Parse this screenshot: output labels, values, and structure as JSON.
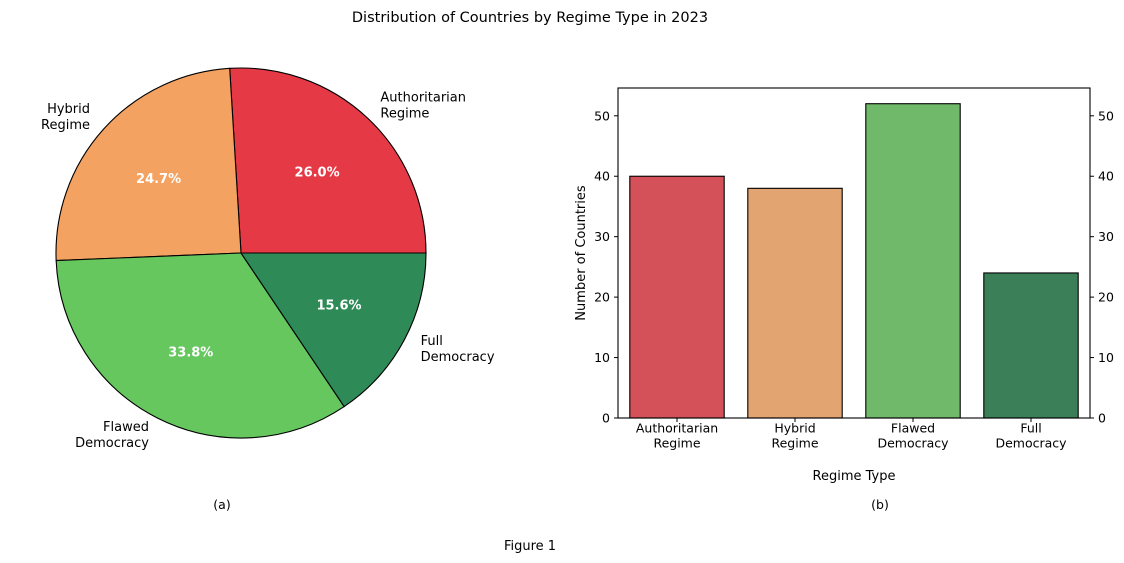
{
  "figure": {
    "title": "Distribution of Countries by Regime Type in 2023",
    "caption": "Figure 1"
  },
  "chart_data": [
    {
      "type": "pie",
      "panel_label": "(a)",
      "categories": [
        "Authoritarian Regime",
        "Hybrid Regime",
        "Flawed Democracy",
        "Full Democracy"
      ],
      "category_lines": [
        [
          "Authoritarian",
          "Regime"
        ],
        [
          "Hybrid",
          "Regime"
        ],
        [
          "Flawed",
          "Democracy"
        ],
        [
          "Full",
          "Democracy"
        ]
      ],
      "values": [
        40,
        38,
        52,
        24
      ],
      "percent_labels": [
        "26.0%",
        "24.7%",
        "33.8%",
        "15.6%"
      ],
      "colors": [
        "#e63946",
        "#f4a261",
        "#66c75f",
        "#2e8b57"
      ],
      "start_angle_deg": 0,
      "direction": "counterclockwise"
    },
    {
      "type": "bar",
      "panel_label": "(b)",
      "categories": [
        "Authoritarian Regime",
        "Hybrid Regime",
        "Flawed Democracy",
        "Full Democracy"
      ],
      "category_lines": [
        [
          "Authoritarian",
          "Regime"
        ],
        [
          "Hybrid",
          "Regime"
        ],
        [
          "Flawed",
          "Democracy"
        ],
        [
          "Full",
          "Democracy"
        ]
      ],
      "values": [
        40,
        38,
        52,
        24
      ],
      "colors": [
        "#d4515a",
        "#e2a470",
        "#70b96a",
        "#3a7f57"
      ],
      "xlabel": "Regime Type",
      "ylabel": "Number of Countries",
      "ylim": [
        0,
        54.6
      ],
      "yticks": [
        0,
        10,
        20,
        30,
        40,
        50
      ],
      "right_axis_ticks": true,
      "grid": false
    }
  ]
}
